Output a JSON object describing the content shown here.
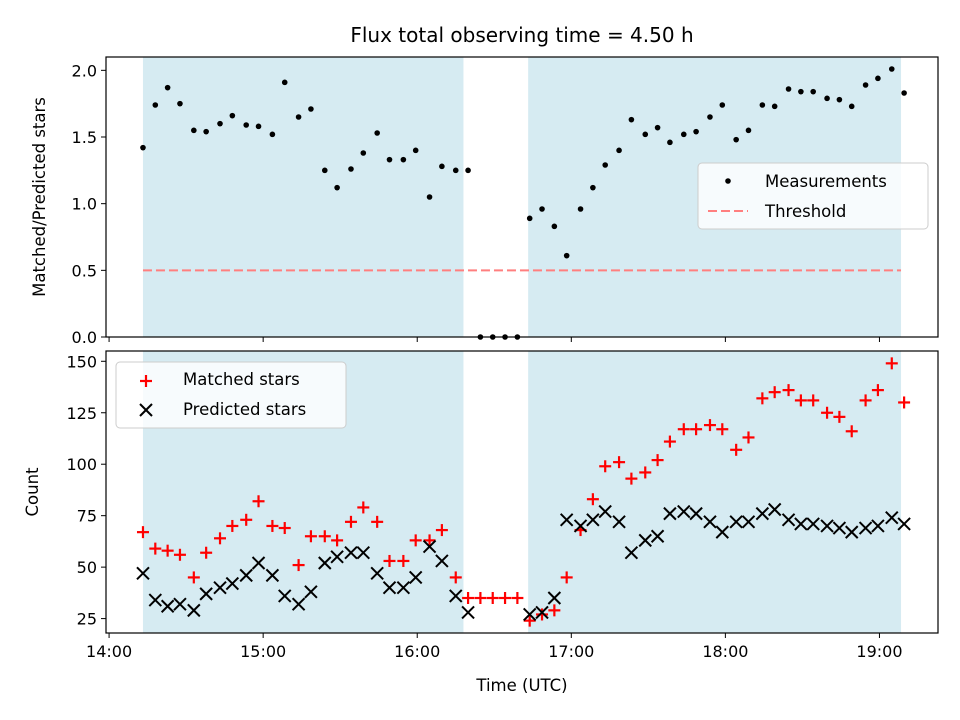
{
  "chart_data": {
    "title": "Flux total observing time = 4.50 h",
    "xlabel": "Time (UTC)",
    "x_ticks": [
      "14:00",
      "15:00",
      "16:00",
      "17:00",
      "18:00",
      "19:00"
    ],
    "x_tick_hours": [
      14,
      15,
      16,
      17,
      18,
      19
    ],
    "xlim_hours": [
      13.98,
      19.38
    ],
    "shaded_spans_hours": [
      [
        14.22,
        16.3
      ],
      [
        16.72,
        19.14
      ]
    ],
    "shade_color": "#add8e6",
    "panels": [
      {
        "type": "scatter",
        "ylabel": "Matched/Predicted stars",
        "ylim": [
          0,
          2.1
        ],
        "y_ticks": [
          0.0,
          0.5,
          1.0,
          1.5,
          2.0
        ],
        "y_tick_labels": [
          "0.0",
          "0.5",
          "1.0",
          "1.5",
          "2.0"
        ],
        "legend": {
          "position": "center-right",
          "entries": [
            "Measurements",
            "Threshold"
          ]
        },
        "series": [
          {
            "name": "Measurements",
            "marker": "dot",
            "color": "#000000",
            "x": [
              14.22,
              14.3,
              14.38,
              14.46,
              14.55,
              14.63,
              14.72,
              14.8,
              14.89,
              14.97,
              15.06,
              15.14,
              15.23,
              15.31,
              15.4,
              15.48,
              15.57,
              15.65,
              15.74,
              15.82,
              15.91,
              15.99,
              16.08,
              16.16,
              16.25,
              16.33,
              16.41,
              16.49,
              16.57,
              16.65,
              16.73,
              16.81,
              16.89,
              16.97,
              17.06,
              17.14,
              17.22,
              17.31,
              17.39,
              17.48,
              17.56,
              17.64,
              17.73,
              17.81,
              17.9,
              17.98,
              18.07,
              18.15,
              18.24,
              18.32,
              18.41,
              18.49,
              18.57,
              18.66,
              18.74,
              18.82,
              18.91,
              18.99,
              19.08,
              19.16
            ],
            "y": [
              1.42,
              1.74,
              1.87,
              1.75,
              1.55,
              1.54,
              1.6,
              1.66,
              1.59,
              1.58,
              1.52,
              1.91,
              1.65,
              1.71,
              1.25,
              1.12,
              1.26,
              1.38,
              1.53,
              1.33,
              1.33,
              1.4,
              1.05,
              1.28,
              1.25,
              1.25,
              0.0,
              0.0,
              0.0,
              0.0,
              0.89,
              0.96,
              0.83,
              0.61,
              0.96,
              1.12,
              1.29,
              1.4,
              1.63,
              1.52,
              1.57,
              1.46,
              1.52,
              1.54,
              1.65,
              1.74,
              1.48,
              1.55,
              1.74,
              1.73,
              1.86,
              1.84,
              1.84,
              1.79,
              1.78,
              1.73,
              1.89,
              1.94,
              2.01,
              1.83
            ]
          },
          {
            "name": "Threshold",
            "style": "dashed",
            "color": "#ff7f7f",
            "x": [
              14.22,
              19.14
            ],
            "y": [
              0.5,
              0.5
            ]
          }
        ]
      },
      {
        "type": "scatter",
        "ylabel": "Count",
        "ylim": [
          18,
          155
        ],
        "y_ticks": [
          25,
          50,
          75,
          100,
          125,
          150
        ],
        "y_tick_labels": [
          "25",
          "50",
          "75",
          "100",
          "125",
          "150"
        ],
        "legend": {
          "position": "upper-left",
          "entries": [
            "Matched stars",
            "Predicted stars"
          ]
        },
        "series": [
          {
            "name": "Matched stars",
            "marker": "plus",
            "color": "#ff0000",
            "x": [
              14.22,
              14.3,
              14.38,
              14.46,
              14.55,
              14.63,
              14.72,
              14.8,
              14.89,
              14.97,
              15.06,
              15.14,
              15.23,
              15.31,
              15.4,
              15.48,
              15.57,
              15.65,
              15.74,
              15.82,
              15.91,
              15.99,
              16.08,
              16.16,
              16.25,
              16.33,
              16.41,
              16.49,
              16.57,
              16.65,
              16.73,
              16.81,
              16.89,
              16.97,
              17.06,
              17.14,
              17.22,
              17.31,
              17.39,
              17.48,
              17.56,
              17.64,
              17.73,
              17.81,
              17.9,
              17.98,
              18.07,
              18.15,
              18.24,
              18.32,
              18.41,
              18.49,
              18.57,
              18.66,
              18.74,
              18.82,
              18.91,
              18.99,
              19.08,
              19.16
            ],
            "y": [
              67,
              59,
              58,
              56,
              45,
              57,
              64,
              70,
              73,
              82,
              70,
              69,
              51,
              65,
              65,
              63,
              72,
              79,
              72,
              53,
              53,
              63,
              63,
              68,
              45,
              35,
              35,
              35,
              35,
              35,
              24,
              27,
              29,
              45,
              68,
              83,
              99,
              101,
              93,
              96,
              102,
              111,
              117,
              117,
              119,
              117,
              107,
              113,
              132,
              135,
              136,
              131,
              131,
              125,
              123,
              116,
              131,
              136,
              149,
              130
            ]
          },
          {
            "name": "Predicted stars",
            "marker": "x",
            "color": "#000000",
            "x": [
              14.22,
              14.3,
              14.38,
              14.46,
              14.55,
              14.63,
              14.72,
              14.8,
              14.89,
              14.97,
              15.06,
              15.14,
              15.23,
              15.31,
              15.4,
              15.48,
              15.57,
              15.65,
              15.74,
              15.82,
              15.91,
              15.99,
              16.08,
              16.16,
              16.25,
              16.33,
              16.73,
              16.81,
              16.89,
              16.97,
              17.06,
              17.14,
              17.22,
              17.31,
              17.39,
              17.48,
              17.56,
              17.64,
              17.73,
              17.81,
              17.9,
              17.98,
              18.07,
              18.15,
              18.24,
              18.32,
              18.41,
              18.49,
              18.57,
              18.66,
              18.74,
              18.82,
              18.91,
              18.99,
              19.08,
              19.16
            ],
            "y": [
              47,
              34,
              31,
              32,
              29,
              37,
              40,
              42,
              46,
              52,
              46,
              36,
              32,
              38,
              52,
              55,
              57,
              57,
              47,
              40,
              40,
              45,
              60,
              53,
              36,
              28,
              27,
              28,
              35,
              73,
              70,
              73,
              77,
              72,
              57,
              63,
              65,
              76,
              77,
              76,
              72,
              67,
              72,
              72,
              76,
              78,
              73,
              71,
              71,
              70,
              69,
              67,
              69,
              70,
              74,
              71
            ]
          }
        ]
      }
    ]
  }
}
